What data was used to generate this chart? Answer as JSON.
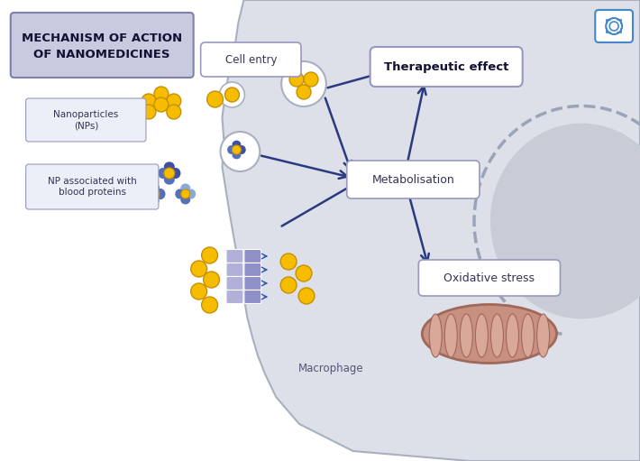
{
  "bg_color": "#ffffff",
  "cell_color": "#dde0e8",
  "cell_border_color": "#a8b0c0",
  "title_box_color": "#c8cae0",
  "title_text": "MECHANISM OF ACTION\nOF NANOMEDICINES",
  "label_box_color": "#eceef8",
  "np_label": "Nanoparticles\n(NPs)",
  "blood_label": "NP associated with\nblood proteins",
  "cell_entry_label": "Cell entry",
  "metabolisation_label": "Metabolisation",
  "therapeutic_label": "Therapeutic effect",
  "oxidative_label": "Oxidative stress",
  "macrophage_label": "Macrophage",
  "gold_color": "#f5bc00",
  "gold_outline": "#c89000",
  "blue_dark": "#4050a0",
  "blue_mid": "#5570b8",
  "blue_light": "#88aad8",
  "arrow_color": "#2a3a80",
  "transport_color": "#9090c8",
  "transport_light": "#b0b0d8",
  "mito_fill": "#c89080",
  "mito_inner": "#daa898",
  "mito_border": "#a06858",
  "nucleus_color": "#9aa4b8",
  "label_border": "#9898c0",
  "cam_border": "#4488cc",
  "white": "#ffffff"
}
